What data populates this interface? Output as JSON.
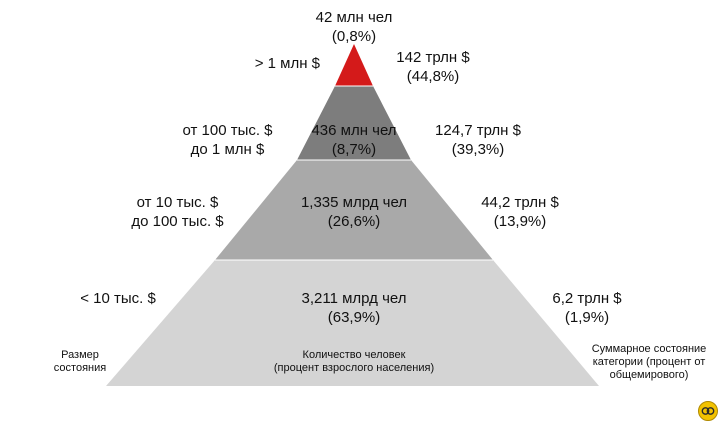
{
  "tiers": [
    {
      "wealth_line1": "> 1 млн $",
      "wealth_line2": "",
      "people_line1": "42 млн чел",
      "people_line2": "(0,8%)",
      "total_line1": "142 трлн $",
      "total_line2": "(44,8%)",
      "color": "#d41a1a"
    },
    {
      "wealth_line1": "от 100 тыс. $",
      "wealth_line2": "до 1 млн $",
      "people_line1": "436 млн чел",
      "people_line2": "(8,7%)",
      "total_line1": "124,7 трлн $",
      "total_line2": "(39,3%)",
      "color": "#7d7d7d"
    },
    {
      "wealth_line1": "от 10 тыс. $",
      "wealth_line2": "до 100 тыс. $",
      "people_line1": "1,335 млрд чел",
      "people_line2": "(26,6%)",
      "total_line1": "44,2 трлн $",
      "total_line2": "(13,9%)",
      "color": "#a9a9a9"
    },
    {
      "wealth_line1": "< 10 тыс. $",
      "wealth_line2": "",
      "people_line1": "3,211 млрд чел",
      "people_line2": "(63,9%)",
      "total_line1": "6,2 трлн $",
      "total_line2": "(1,9%)",
      "color": "#d4d4d4"
    }
  ],
  "captions": {
    "wealth_line1": "Размер",
    "wealth_line2": "состояния",
    "people_line1": "Количество человек",
    "people_line2": "(процент взрослого населения)",
    "total_line1": "Суммарное состояние",
    "total_line2": "категории (процент от",
    "total_line3": "общемирового)"
  },
  "logo": {
    "icon": "logo-icon",
    "color": "#f2c200"
  }
}
